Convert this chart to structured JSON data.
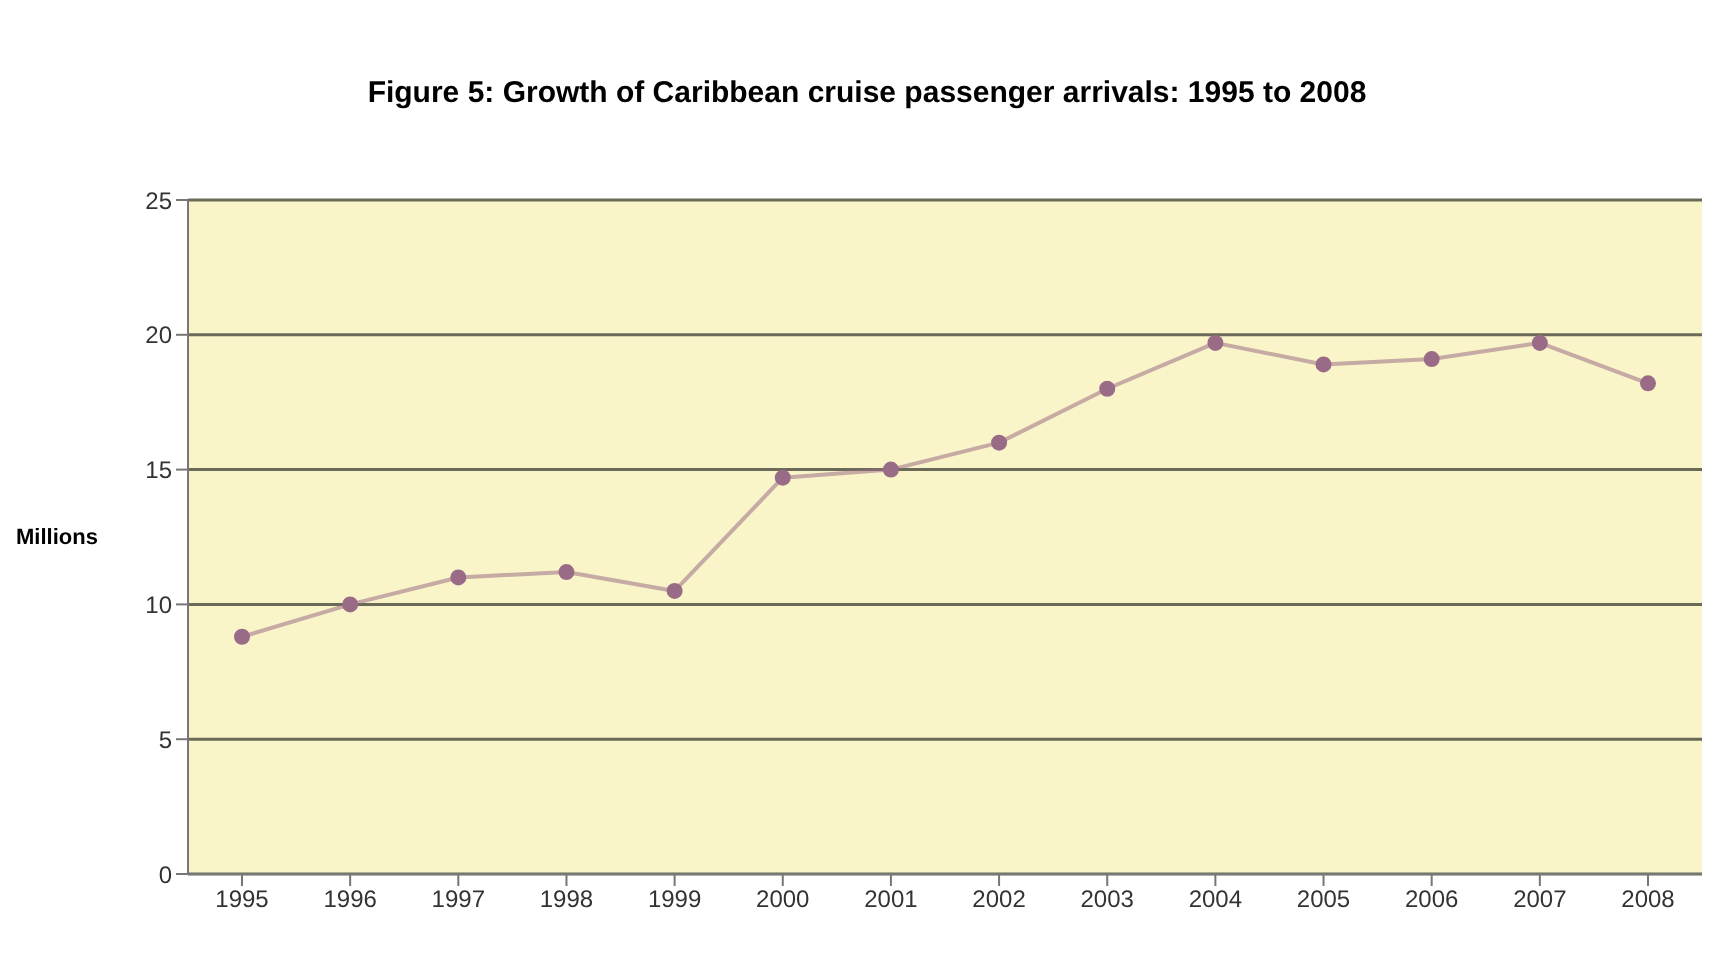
{
  "chart_data": {
    "type": "line",
    "title": "Figure 5: Growth of Caribbean cruise passenger arrivals: 1995 to 2008",
    "ylabel": "Millions",
    "categories": [
      "1995",
      "1996",
      "1997",
      "1998",
      "1999",
      "2000",
      "2001",
      "2002",
      "2003",
      "2004",
      "2005",
      "2006",
      "2007",
      "2008"
    ],
    "series": [
      {
        "color": "#9a6b86",
        "values": [
          8.8,
          10.0,
          11.0,
          11.2,
          10.5,
          14.7,
          15.0,
          16.0,
          18.0,
          19.7,
          18.9,
          19.1,
          19.7,
          18.2
        ]
      }
    ],
    "ylim": [
      0,
      25
    ],
    "yticks": [
      0,
      5,
      10,
      15,
      20,
      25
    ],
    "grid": "y",
    "marker": "circle",
    "line_style": "solid",
    "legend": false
  }
}
